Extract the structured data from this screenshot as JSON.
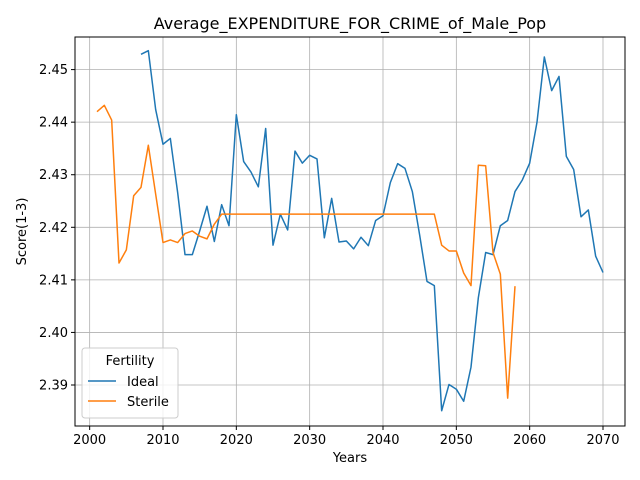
{
  "chart_data": {
    "type": "line",
    "title": "Average_EXPENDITURE_FOR_CRIME_of_Male_Pop",
    "xlabel": "Years",
    "ylabel": "Score(1-3)",
    "xlim": [
      1998,
      2073
    ],
    "ylim": [
      2.3822,
      2.4562
    ],
    "xticks": [
      2000,
      2010,
      2020,
      2030,
      2040,
      2050,
      2060,
      2070
    ],
    "yticks": [
      2.39,
      2.4,
      2.41,
      2.42,
      2.43,
      2.44,
      2.45
    ],
    "ytick_labels": [
      "2.39",
      "2.40",
      "2.41",
      "2.42",
      "2.43",
      "2.44",
      "2.45"
    ],
    "grid": true,
    "legend": {
      "title": "Fertility",
      "placement": "lower-left"
    },
    "series": [
      {
        "name": "Ideal",
        "color": "#1f77b4",
        "x": [
          2007,
          2008,
          2009,
          2010,
          2011,
          2012,
          2013,
          2014,
          2015,
          2016,
          2017,
          2018,
          2019,
          2020,
          2021,
          2022,
          2023,
          2024,
          2025,
          2026,
          2027,
          2028,
          2029,
          2030,
          2031,
          2032,
          2033,
          2034,
          2035,
          2036,
          2037,
          2038,
          2039,
          2040,
          2041,
          2042,
          2043,
          2044,
          2045,
          2046,
          2047,
          2048,
          2049,
          2050,
          2051,
          2052,
          2053,
          2054,
          2055,
          2056,
          2057,
          2058,
          2059,
          2060,
          2061,
          2062,
          2063,
          2064,
          2065,
          2066,
          2067,
          2068,
          2069,
          2070
        ],
        "y": [
          2.4529,
          2.4536,
          2.4424,
          2.4358,
          2.4369,
          2.4266,
          2.4148,
          2.4148,
          2.4193,
          2.424,
          2.4173,
          2.4243,
          2.4203,
          2.4414,
          2.4325,
          2.4305,
          2.4277,
          2.4388,
          2.4166,
          2.4225,
          2.4195,
          2.4345,
          2.4322,
          2.4337,
          2.433,
          2.418,
          2.4255,
          2.4172,
          2.4174,
          2.4159,
          2.4181,
          2.4165,
          2.4213,
          2.4222,
          2.4285,
          2.4321,
          2.4312,
          2.4268,
          2.4185,
          2.4097,
          2.4089,
          2.3851,
          2.3901,
          2.3892,
          2.3869,
          2.3934,
          2.4066,
          2.4152,
          2.4148,
          2.4203,
          2.4213,
          2.4268,
          2.429,
          2.4322,
          2.44,
          2.4524,
          2.446,
          2.4487,
          2.4335,
          2.431,
          2.422,
          2.4233,
          2.4145,
          2.4114
        ]
      },
      {
        "name": "Sterile",
        "color": "#ff7f0e",
        "x": [
          2001,
          2002,
          2003,
          2004,
          2005,
          2006,
          2007,
          2008,
          2009,
          2010,
          2011,
          2012,
          2013,
          2014,
          2015,
          2016,
          2017,
          2018,
          2019,
          2020,
          2021,
          2022,
          2023,
          2024,
          2025,
          2026,
          2027,
          2028,
          2029,
          2030,
          2031,
          2032,
          2033,
          2034,
          2035,
          2036,
          2037,
          2038,
          2039,
          2040,
          2041,
          2042,
          2043,
          2044,
          2045,
          2046,
          2047,
          2048,
          2049,
          2050,
          2051,
          2052,
          2053,
          2054,
          2055,
          2056,
          2057,
          2058
        ],
        "y": [
          2.442,
          2.4432,
          2.4404,
          2.4132,
          2.4157,
          2.426,
          2.4276,
          2.4356,
          2.4263,
          2.4171,
          2.4176,
          2.4171,
          2.4188,
          2.4193,
          2.4183,
          2.4178,
          2.4206,
          2.4225,
          2.4225,
          2.4225,
          2.4225,
          2.4225,
          2.4225,
          2.4225,
          2.4225,
          2.4225,
          2.4225,
          2.4225,
          2.4225,
          2.4225,
          2.4225,
          2.4225,
          2.4225,
          2.4225,
          2.4225,
          2.4225,
          2.4225,
          2.4225,
          2.4225,
          2.4225,
          2.4225,
          2.4225,
          2.4225,
          2.4225,
          2.4225,
          2.4225,
          2.4225,
          2.4166,
          2.4155,
          2.4155,
          2.4113,
          2.4089,
          2.4318,
          2.4317,
          2.4152,
          2.4111,
          2.3875,
          2.4088
        ]
      }
    ]
  }
}
